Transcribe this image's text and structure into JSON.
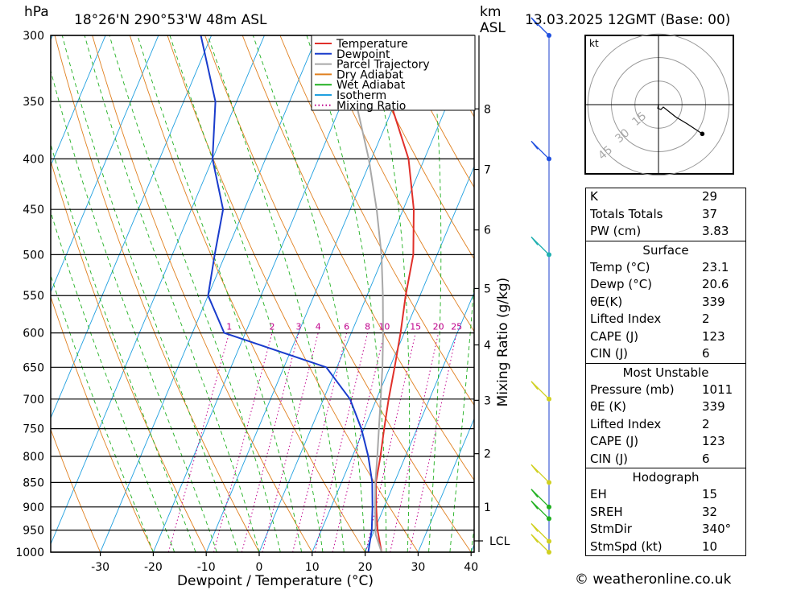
{
  "header": {
    "location": "18°26'N  290°53'W  48m  ASL",
    "pressure_unit": "hPa",
    "height_unit_line1": "km",
    "height_unit_line2": "ASL",
    "datetime": "13.03.2025  12GMT  (Base: 00)"
  },
  "axes": {
    "xlabel": "Dewpoint / Temperature (°C)",
    "mixing_ratio_label": "Mixing Ratio (g/kg)",
    "lcl_label": "LCL"
  },
  "legend": [
    {
      "label": "Temperature",
      "color": "#e0302a"
    },
    {
      "label": "Dewpoint",
      "color": "#1a3ccc"
    },
    {
      "label": "Parcel Trajectory",
      "color": "#a8a8a8"
    },
    {
      "label": "Dry Adiabat",
      "color": "#e08020"
    },
    {
      "label": "Wet Adiabat",
      "color": "#20b020"
    },
    {
      "label": "Isotherm",
      "color": "#20a0e0"
    },
    {
      "label": "Mixing Ratio",
      "color": "#c0008c"
    }
  ],
  "chart_data": {
    "type": "line",
    "title": "",
    "pressure_levels": [
      1000,
      950,
      900,
      850,
      800,
      750,
      700,
      650,
      600,
      550,
      500,
      450,
      400,
      350,
      300
    ],
    "x_ticks": [
      -30,
      -20,
      -10,
      0,
      10,
      20,
      30,
      40
    ],
    "x_range": [
      -40,
      40
    ],
    "p_range": [
      1000,
      300
    ],
    "km_ticks": [
      1,
      2,
      3,
      4,
      5,
      6,
      7,
      8
    ],
    "mixing_ratio_labels": [
      "1",
      "2",
      "3",
      "4",
      "6",
      "8",
      "10",
      "15",
      "20",
      "25"
    ],
    "series": [
      {
        "name": "Temperature",
        "points": [
          [
            1000,
            23.1
          ],
          [
            950,
            20.6
          ],
          [
            900,
            18.5
          ],
          [
            850,
            16.5
          ],
          [
            800,
            15.3
          ],
          [
            750,
            13.8
          ],
          [
            700,
            12.3
          ],
          [
            650,
            10.9
          ],
          [
            600,
            9.3
          ],
          [
            550,
            7.3
          ],
          [
            500,
            5.5
          ],
          [
            450,
            2.0
          ],
          [
            400,
            -3.0
          ],
          [
            350,
            -11.0
          ],
          [
            300,
            -22.0
          ]
        ]
      },
      {
        "name": "Dewpoint",
        "points": [
          [
            1000,
            20.6
          ],
          [
            950,
            19.5
          ],
          [
            900,
            17.8
          ],
          [
            850,
            15.8
          ],
          [
            800,
            13.0
          ],
          [
            750,
            9.5
          ],
          [
            700,
            5.0
          ],
          [
            650,
            -2.0
          ],
          [
            600,
            -24.0
          ],
          [
            550,
            -30.0
          ],
          [
            500,
            -32.0
          ],
          [
            450,
            -34.0
          ],
          [
            400,
            -40.0
          ],
          [
            350,
            -44.0
          ],
          [
            300,
            -52.0
          ]
        ]
      },
      {
        "name": "Parcel Trajectory",
        "points": [
          [
            1000,
            23.1
          ],
          [
            960,
            20.6
          ],
          [
            900,
            18.3
          ],
          [
            850,
            16.4
          ],
          [
            800,
            14.7
          ],
          [
            750,
            12.8
          ],
          [
            700,
            10.8
          ],
          [
            650,
            8.6
          ],
          [
            600,
            6.0
          ],
          [
            550,
            3.0
          ],
          [
            500,
            -0.5
          ],
          [
            450,
            -5.0
          ],
          [
            400,
            -10.5
          ],
          [
            350,
            -17.5
          ],
          [
            300,
            -26.0
          ]
        ]
      }
    ],
    "hodograph": {
      "unit": "kt",
      "ring_labels": [
        "15",
        "30",
        "45"
      ],
      "points": [
        [
          0,
          0
        ],
        [
          -0.3,
          -1.5
        ],
        [
          1,
          -2
        ],
        [
          2,
          -1
        ],
        [
          7,
          -5
        ],
        [
          12,
          -8
        ],
        [
          18,
          -12
        ]
      ]
    },
    "wind_barbs": [
      {
        "p": 1000,
        "color": "#d0d020"
      },
      {
        "p": 975,
        "color": "#d0d020"
      },
      {
        "p": 925,
        "color": "#20b020"
      },
      {
        "p": 900,
        "color": "#20b020"
      },
      {
        "p": 850,
        "color": "#d0d020"
      },
      {
        "p": 700,
        "color": "#d0d020"
      },
      {
        "p": 500,
        "color": "#20b0b0"
      },
      {
        "p": 400,
        "color": "#2050e0"
      },
      {
        "p": 300,
        "color": "#2050e0"
      }
    ]
  },
  "indices": {
    "top": [
      {
        "label": "K",
        "value": "29"
      },
      {
        "label": "Totals Totals",
        "value": "37"
      },
      {
        "label": "PW (cm)",
        "value": "3.83"
      }
    ],
    "surface": {
      "title": "Surface",
      "rows": [
        {
          "label": "Temp (°C)",
          "value": "23.1"
        },
        {
          "label": "Dewp (°C)",
          "value": "20.6"
        },
        {
          "label": "θE(K)",
          "value": "339"
        },
        {
          "label": "Lifted Index",
          "value": "2"
        },
        {
          "label": "CAPE (J)",
          "value": "123"
        },
        {
          "label": "CIN (J)",
          "value": "6"
        }
      ]
    },
    "most_unstable": {
      "title": "Most Unstable",
      "rows": [
        {
          "label": "Pressure (mb)",
          "value": "1011"
        },
        {
          "label": "θE (K)",
          "value": "339"
        },
        {
          "label": "Lifted Index",
          "value": "2"
        },
        {
          "label": "CAPE (J)",
          "value": "123"
        },
        {
          "label": "CIN (J)",
          "value": "6"
        }
      ]
    },
    "hodograph": {
      "title": "Hodograph",
      "rows": [
        {
          "label": "EH",
          "value": "15"
        },
        {
          "label": "SREH",
          "value": "32"
        },
        {
          "label": "StmDir",
          "value": "340°"
        },
        {
          "label": "StmSpd (kt)",
          "value": "10"
        }
      ]
    }
  },
  "credit": "© weatheronline.co.uk"
}
